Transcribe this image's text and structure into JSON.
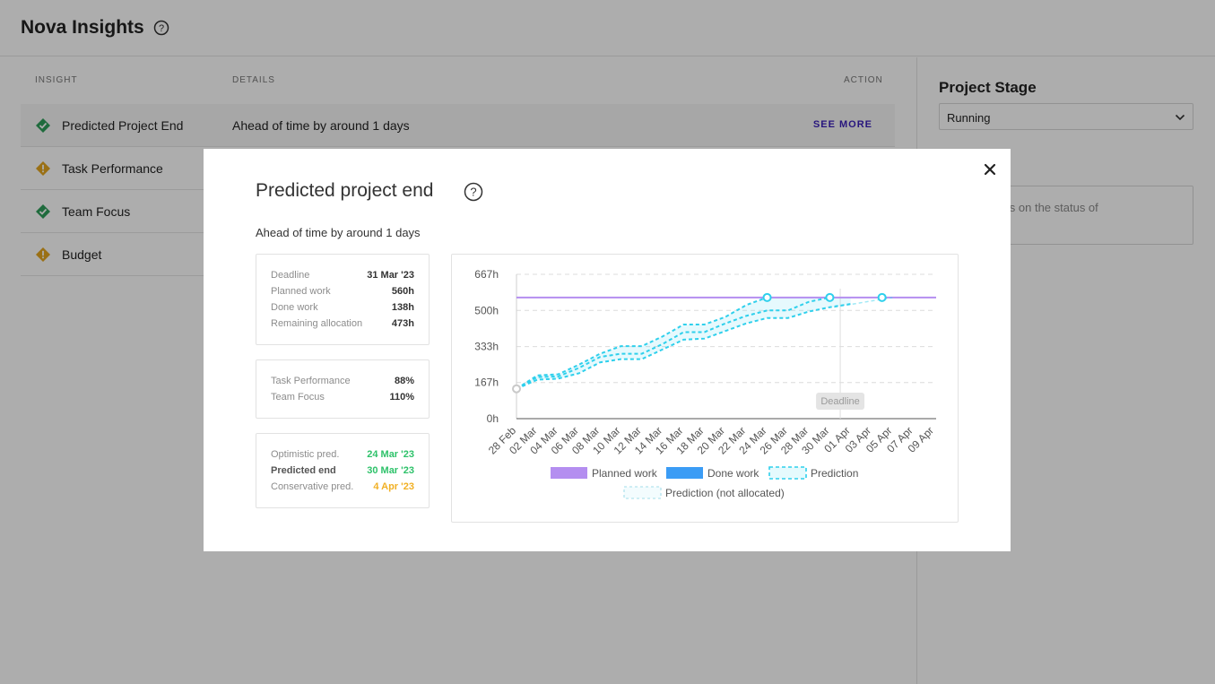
{
  "header": {
    "title": "Nova Insights"
  },
  "table": {
    "columns": {
      "insight": "INSIGHT",
      "details": "DETAILS",
      "action": "ACTION"
    },
    "rows": [
      {
        "name": "Predicted Project End",
        "details": "Ahead of time by around 1 days",
        "action": "SEE MORE",
        "status": "ok",
        "status_color": "#2e9e5b"
      },
      {
        "name": "Task Performance",
        "status": "warning",
        "status_color": "#e3a51f"
      },
      {
        "name": "Team Focus",
        "status": "ok",
        "status_color": "#2e9e5b"
      },
      {
        "name": "Budget",
        "status": "warning",
        "status_color": "#e3a51f"
      }
    ]
  },
  "side": {
    "stage_title": "Project Stage",
    "stage_value": "Running",
    "notes_placeholder_visible": "our thoughts on the status of\nt?"
  },
  "modal": {
    "title": "Predicted project end",
    "subtitle": "Ahead of time by around 1 days",
    "card1": [
      {
        "label": "Deadline",
        "value": "31 Mar '23"
      },
      {
        "label": "Planned work",
        "value": "560h"
      },
      {
        "label": "Done work",
        "value": "138h"
      },
      {
        "label": "Remaining allocation",
        "value": "473h"
      }
    ],
    "card2": [
      {
        "label": "Task Performance",
        "value": "88%"
      },
      {
        "label": "Team Focus",
        "value": "110%"
      }
    ],
    "card3": [
      {
        "label": "Optimistic pred.",
        "value": "24 Mar '23",
        "color": "#2ec26a"
      },
      {
        "label": "Predicted end",
        "value": "30 Mar '23",
        "color": "#2ec26a"
      },
      {
        "label": "Conservative pred.",
        "value": "4 Apr '23",
        "color": "#f1b024"
      }
    ]
  },
  "chart_data": {
    "type": "line",
    "y_ticks": [
      "0h",
      "167h",
      "333h",
      "500h",
      "667h"
    ],
    "ylim": [
      0,
      667
    ],
    "x_ticks": [
      "28 Feb",
      "02 Mar",
      "04 Mar",
      "06 Mar",
      "08 Mar",
      "10 Mar",
      "12 Mar",
      "14 Mar",
      "16 Mar",
      "18 Mar",
      "20 Mar",
      "22 Mar",
      "24 Mar",
      "26 Mar",
      "28 Mar",
      "30 Mar",
      "01 Apr",
      "03 Apr",
      "05 Apr",
      "07 Apr",
      "09 Apr"
    ],
    "deadline_label": "Deadline",
    "deadline_x": "31 Mar",
    "grid": true,
    "legend_position": "bottom",
    "colors": {
      "planned": "#b48ef0",
      "done": "#3b9cf5",
      "prediction": "#2fd0ec"
    },
    "series": [
      {
        "name": "Planned work",
        "x": [
          "28 Feb",
          "10 Apr"
        ],
        "values": [
          560,
          560
        ]
      },
      {
        "name": "Done work",
        "x": [
          "28 Feb"
        ],
        "values": [
          138
        ]
      },
      {
        "name": "Prediction",
        "x": [
          "28 Feb",
          "02 Mar",
          "04 Mar",
          "06 Mar",
          "08 Mar",
          "10 Mar",
          "12 Mar",
          "14 Mar",
          "16 Mar",
          "18 Mar",
          "20 Mar",
          "22 Mar",
          "24 Mar",
          "26 Mar",
          "28 Mar",
          "30 Mar",
          "01 Apr"
        ],
        "optimistic": [
          138,
          200,
          205,
          250,
          300,
          335,
          335,
          380,
          435,
          435,
          470,
          525,
          560,
          560,
          560,
          560,
          560
        ],
        "predicted": [
          138,
          192,
          195,
          235,
          285,
          300,
          300,
          345,
          400,
          400,
          440,
          475,
          500,
          500,
          540,
          560,
          560
        ],
        "conservative": [
          138,
          180,
          185,
          210,
          260,
          275,
          275,
          320,
          365,
          370,
          405,
          440,
          465,
          465,
          495,
          515,
          530
        ]
      },
      {
        "name": "Prediction (not allocated)",
        "x": [
          "30 Mar",
          "05 Apr"
        ],
        "values": [
          515,
          560
        ]
      }
    ]
  }
}
